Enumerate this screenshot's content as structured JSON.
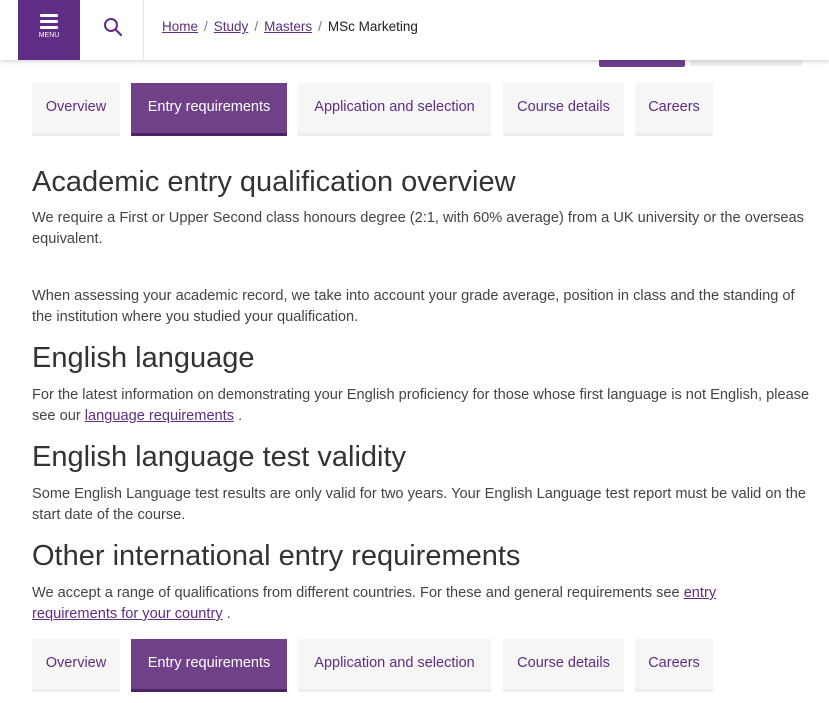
{
  "header": {
    "menu_label": "MENU",
    "breadcrumb": [
      {
        "label": "Home",
        "link": true
      },
      {
        "label": "Study",
        "link": true
      },
      {
        "label": "Masters",
        "link": true
      },
      {
        "label": "MSc Marketing",
        "link": false
      }
    ],
    "separator": "/"
  },
  "tabs": [
    "Overview",
    "Entry requirements",
    "Application and selection",
    "Course details",
    "Careers"
  ],
  "active_tab": "Entry requirements",
  "sections": {
    "academic": {
      "title": "Academic entry qualification overview",
      "p1": "We require a First or Upper Second class honours degree (2:1, with 60% average) from a UK university or the overseas equivalent.",
      "p2": "When assessing your academic record, we take into account your grade average, position in class and the standing of the institution where you studied your qualification."
    },
    "english": {
      "title": "English language",
      "text": "For the latest information on demonstrating your English proficiency for those whose first language is not English, please see our",
      "link": "language requirements",
      "after": "."
    },
    "validity": {
      "title": "English language test validity",
      "text": "Some English Language test results are only valid for two years. Your English Language test report must be valid on the start date of the course."
    },
    "international": {
      "title": "Other international entry requirements",
      "text": "We accept a range of qualifications from different countries. For these and general requirements see",
      "link": "entry requirements for your country",
      "after": "."
    }
  },
  "colors": {
    "brand": "#5f2d83",
    "active_tab": "#704189",
    "tab_bg": "#f6f6f6"
  }
}
